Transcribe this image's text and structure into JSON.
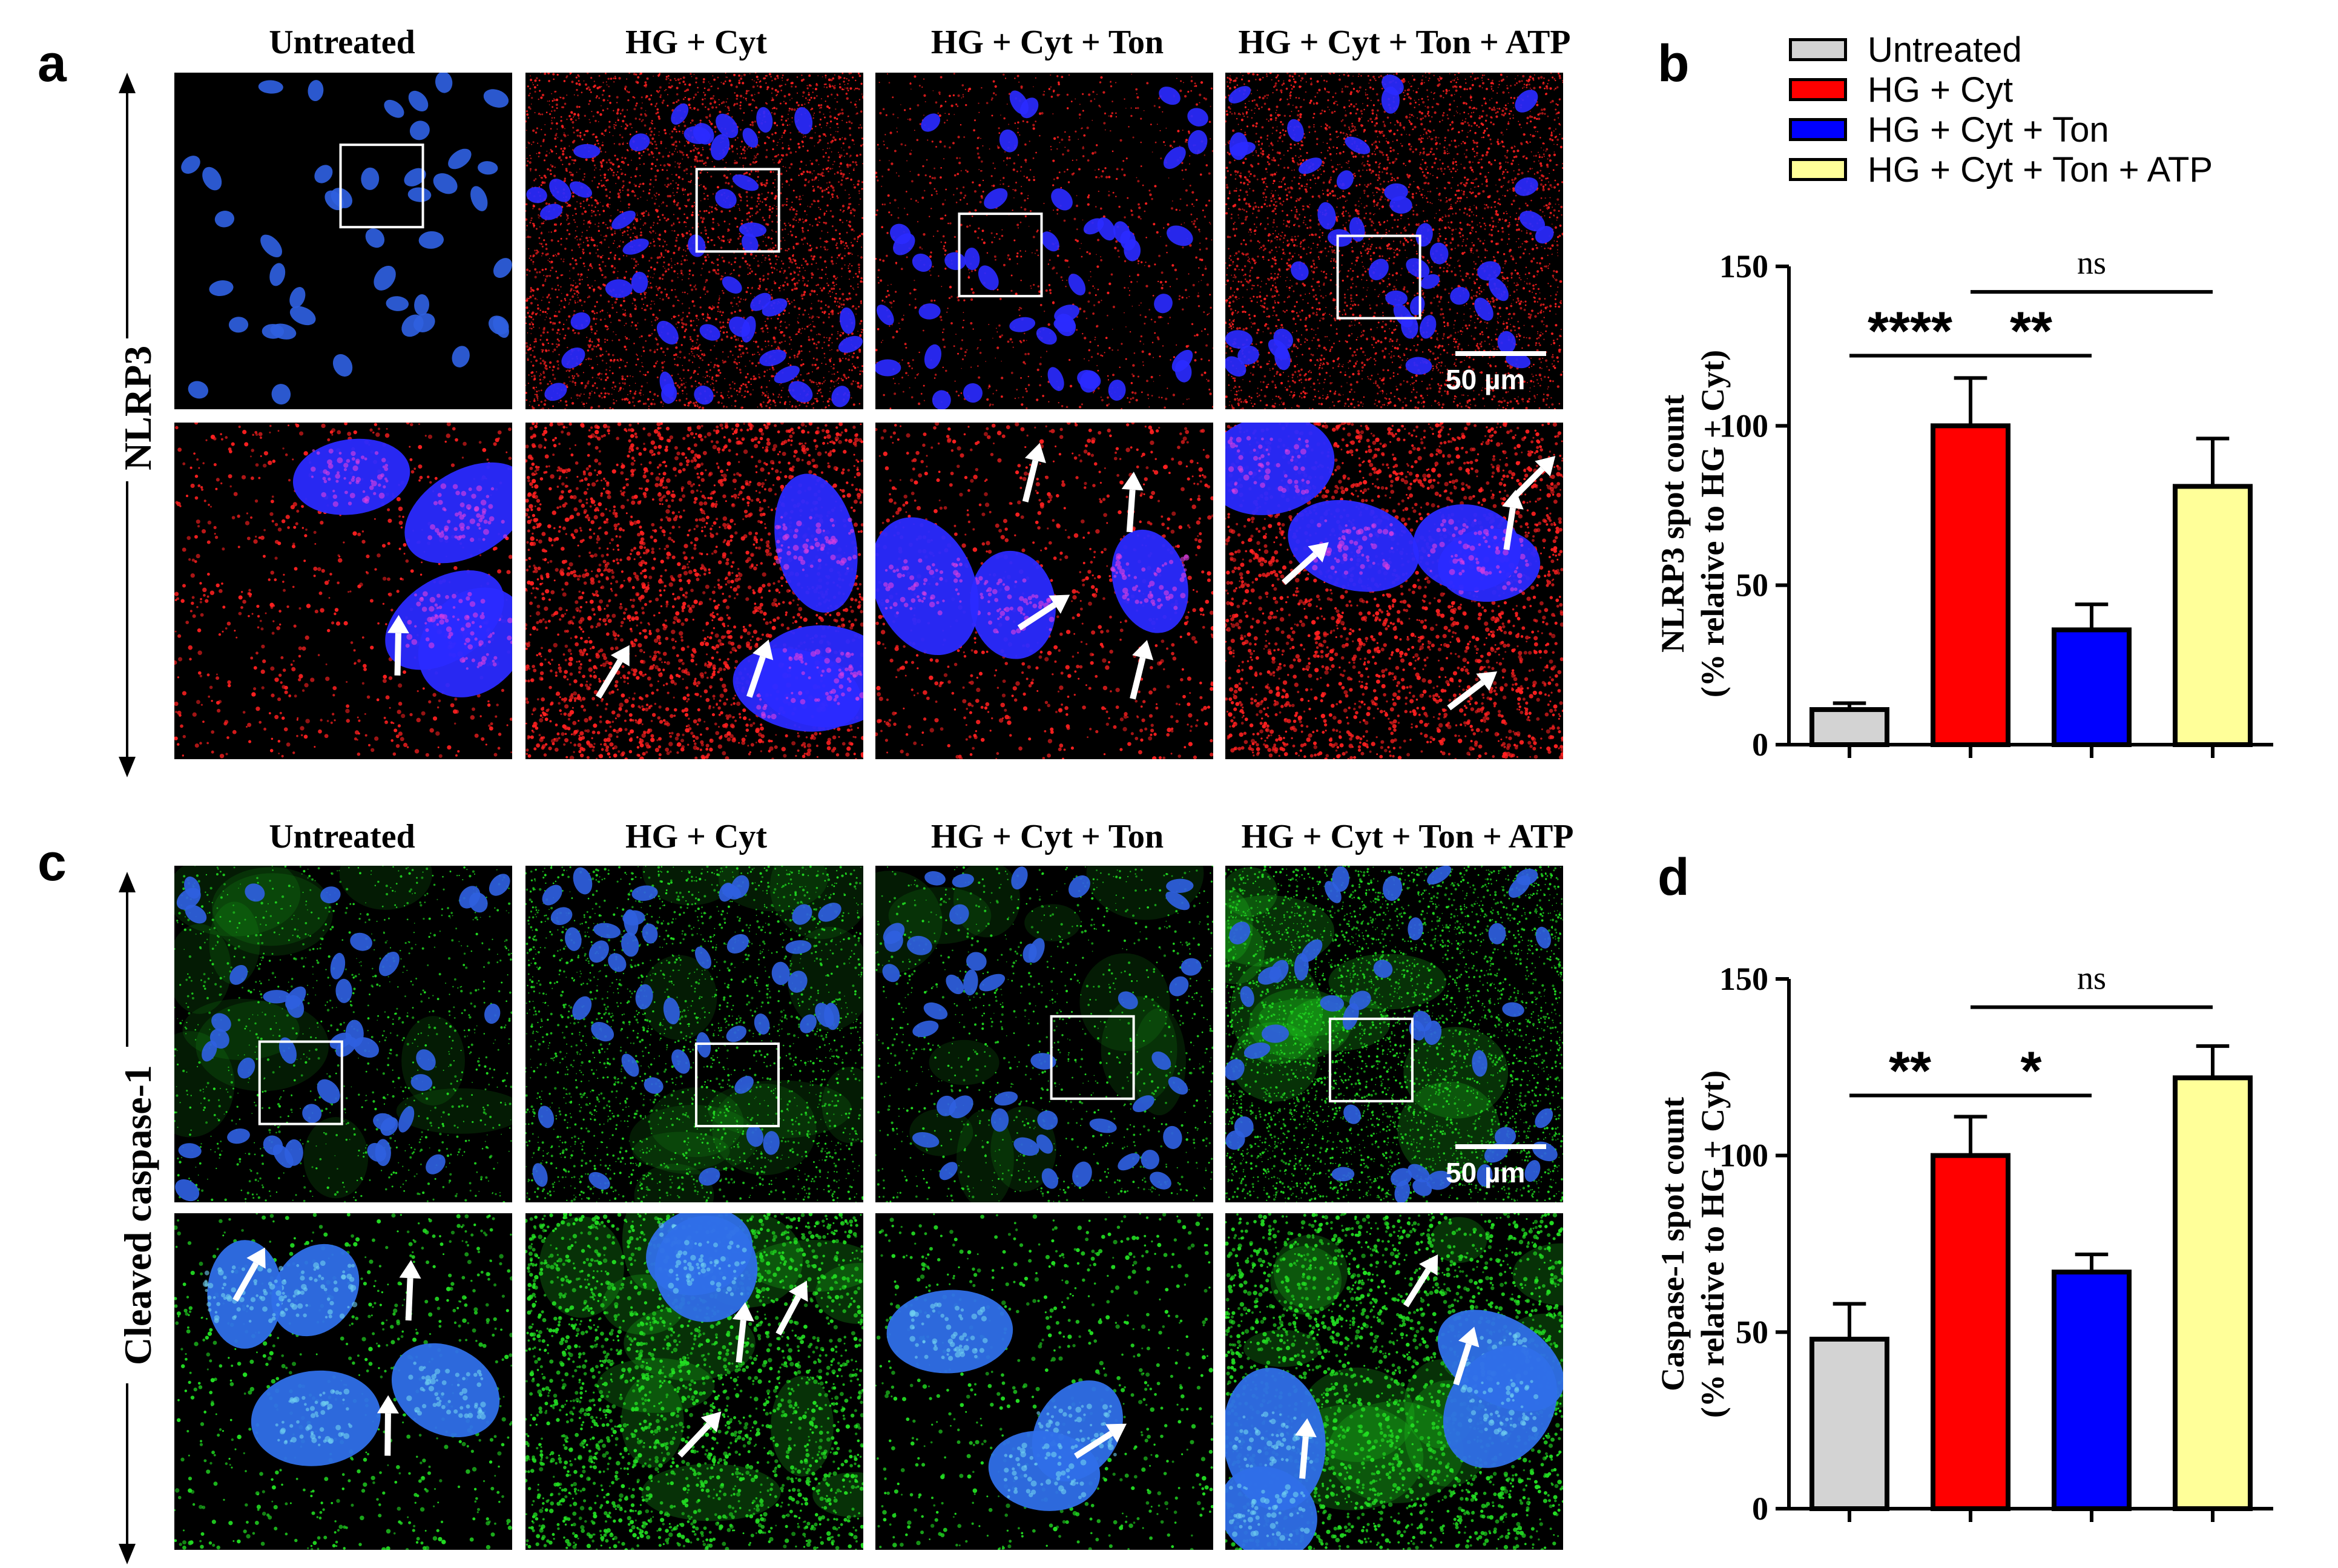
{
  "panels": {
    "a": "a",
    "b": "b",
    "c": "c",
    "d": "d"
  },
  "image_rows": {
    "nlrp3": {
      "row_label": "NLRP3",
      "column_titles": [
        "Untreated",
        "HG + Cyt",
        "HG + Cyt + Ton",
        "HG + Cyt + Ton + ATP"
      ],
      "scale_bar": "50 µm",
      "stain_color": "#ff2020"
    },
    "caspase": {
      "row_label": "Cleaved caspase-1",
      "column_titles": [
        "Untreated",
        "HG + Cyt",
        "HG + Cyt + Ton",
        "HG + Cyt + Ton + ATP"
      ],
      "scale_bar": "50 µm",
      "stain_color": "#22dd22"
    },
    "nucleus_color": "#2a2aff"
  },
  "legend": {
    "items": [
      {
        "label": "Untreated",
        "color": "#d3d3d3"
      },
      {
        "label": "HG + Cyt",
        "color": "#ff0000"
      },
      {
        "label": "HG + Cyt + Ton",
        "color": "#0000ff"
      },
      {
        "label": "HG + Cyt + Ton + ATP",
        "color": "#ffff99"
      }
    ]
  },
  "chart_data": [
    {
      "type": "bar",
      "panel": "b",
      "ylabel_line1": "NLRP3 spot count",
      "ylabel_line2": "(% relative to HG + Cyt)",
      "categories": [
        "Untreated",
        "HG + Cyt",
        "HG + Cyt + Ton",
        "HG + Cyt + Ton + ATP"
      ],
      "values": [
        11,
        100,
        36,
        81
      ],
      "errors": [
        2,
        15,
        8,
        15
      ],
      "colors": [
        "#d3d3d3",
        "#ff0000",
        "#0000ff",
        "#ffff99"
      ],
      "ylim": [
        0,
        150
      ],
      "yticks": [
        "0",
        "50",
        "100",
        "150"
      ],
      "significance": [
        {
          "from": 0,
          "to": 1,
          "label": "****",
          "level": 122
        },
        {
          "from": 1,
          "to": 2,
          "label": "**",
          "level": 122
        },
        {
          "from": 1,
          "to": 3,
          "label": "ns",
          "level": 142
        }
      ]
    },
    {
      "type": "bar",
      "panel": "d",
      "ylabel_line1": "Caspase-1 spot count",
      "ylabel_line2": "(% relative to HG + Cyt)",
      "categories": [
        "Untreated",
        "HG + Cyt",
        "HG + Cyt + Ton",
        "HG + Cyt + Ton + ATP"
      ],
      "values": [
        48,
        100,
        67,
        122
      ],
      "errors": [
        10,
        11,
        5,
        9
      ],
      "colors": [
        "#d3d3d3",
        "#ff0000",
        "#0000ff",
        "#ffff99"
      ],
      "ylim": [
        0,
        150
      ],
      "yticks": [
        "0",
        "50",
        "100",
        "150"
      ],
      "significance": [
        {
          "from": 0,
          "to": 1,
          "label": "**",
          "level": 117
        },
        {
          "from": 1,
          "to": 2,
          "label": "*",
          "level": 117
        },
        {
          "from": 1,
          "to": 3,
          "label": "ns",
          "level": 142
        }
      ]
    }
  ]
}
